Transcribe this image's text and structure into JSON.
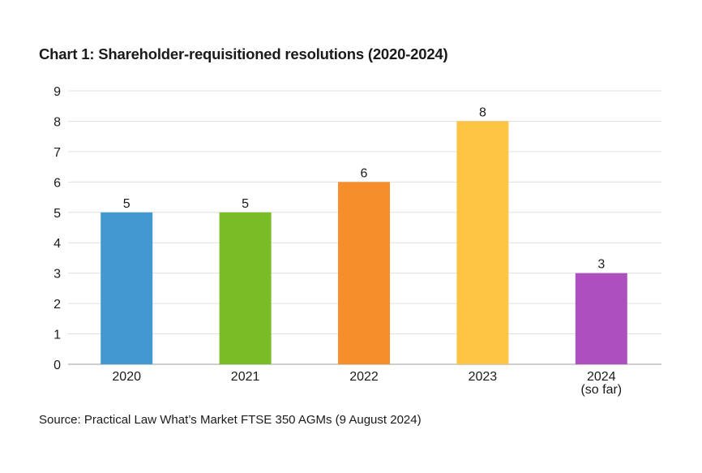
{
  "title": "Chart 1: Shareholder-requisitioned resolutions (2020-2024)",
  "source": "Source: Practical Law What’s Market FTSE 350 AGMs (9 August 2024)",
  "chart_data": {
    "type": "bar",
    "title": "Chart 1: Shareholder-requisitioned resolutions (2020-2024)",
    "categories": [
      [
        "2020"
      ],
      [
        "2021"
      ],
      [
        "2022"
      ],
      [
        "2023"
      ],
      [
        "2024",
        "(so far)"
      ]
    ],
    "values": [
      5,
      5,
      6,
      8,
      3
    ],
    "colors": [
      "#4199d0",
      "#79bc25",
      "#f68e2c",
      "#fdc543",
      "#ae4fc0"
    ],
    "ylim": [
      0,
      9
    ],
    "yticks": [
      0,
      1,
      2,
      3,
      4,
      5,
      6,
      7,
      8,
      9
    ],
    "grid": true,
    "data_labels": true,
    "gridline_color": "#e0e0e0"
  }
}
